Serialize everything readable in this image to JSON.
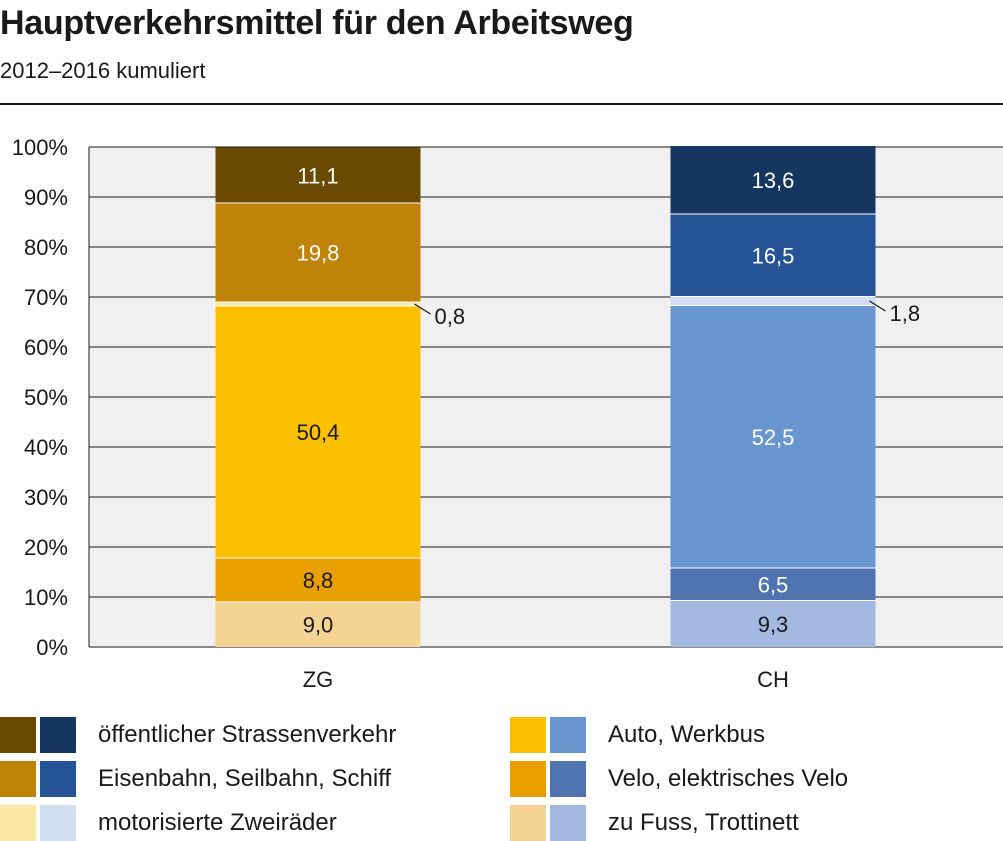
{
  "title": "Hauptverkehrsmittel für den Arbeitsweg",
  "subtitle": "2012–2016 kumuliert",
  "chart_data": {
    "type": "bar",
    "stacked": true,
    "categories": [
      "ZG",
      "CH"
    ],
    "ylim": [
      0,
      100
    ],
    "yticks": [
      "0%",
      "10%",
      "20%",
      "30%",
      "40%",
      "50%",
      "60%",
      "70%",
      "80%",
      "90%",
      "100%"
    ],
    "grid": true,
    "series": [
      {
        "name": "zu Fuss, Trottinett",
        "values": [
          9.0,
          9.3
        ],
        "labels": [
          "9,0",
          "9,3"
        ],
        "colors": [
          "#F4D393",
          "#A3B9E0"
        ]
      },
      {
        "name": "Velo, elektrisches Velo",
        "values": [
          8.8,
          6.5
        ],
        "labels": [
          "8,8",
          "6,5"
        ],
        "colors": [
          "#E8A000",
          "#4F74AF"
        ]
      },
      {
        "name": "Auto, Werkbus",
        "values": [
          50.4,
          52.5
        ],
        "labels": [
          "50,4",
          "52,5"
        ],
        "colors": [
          "#FBC000",
          "#6A96D0"
        ]
      },
      {
        "name": "motorisierte Zweiräder",
        "values": [
          0.8,
          1.8
        ],
        "labels": [
          "0,8",
          "1,8"
        ],
        "colors": [
          "#FDE8A8",
          "#D3DEF2"
        ]
      },
      {
        "name": "Eisenbahn, Seilbahn, Schiff",
        "values": [
          19.8,
          16.5
        ],
        "labels": [
          "19,8",
          "16,5"
        ],
        "colors": [
          "#C08309",
          "#255396"
        ]
      },
      {
        "name": "öffentlicher Strassenverkehr",
        "values": [
          11.1,
          13.6
        ],
        "labels": [
          "11,1",
          "13,6"
        ],
        "colors": [
          "#6A4A00",
          "#15365F"
        ]
      }
    ]
  }
}
